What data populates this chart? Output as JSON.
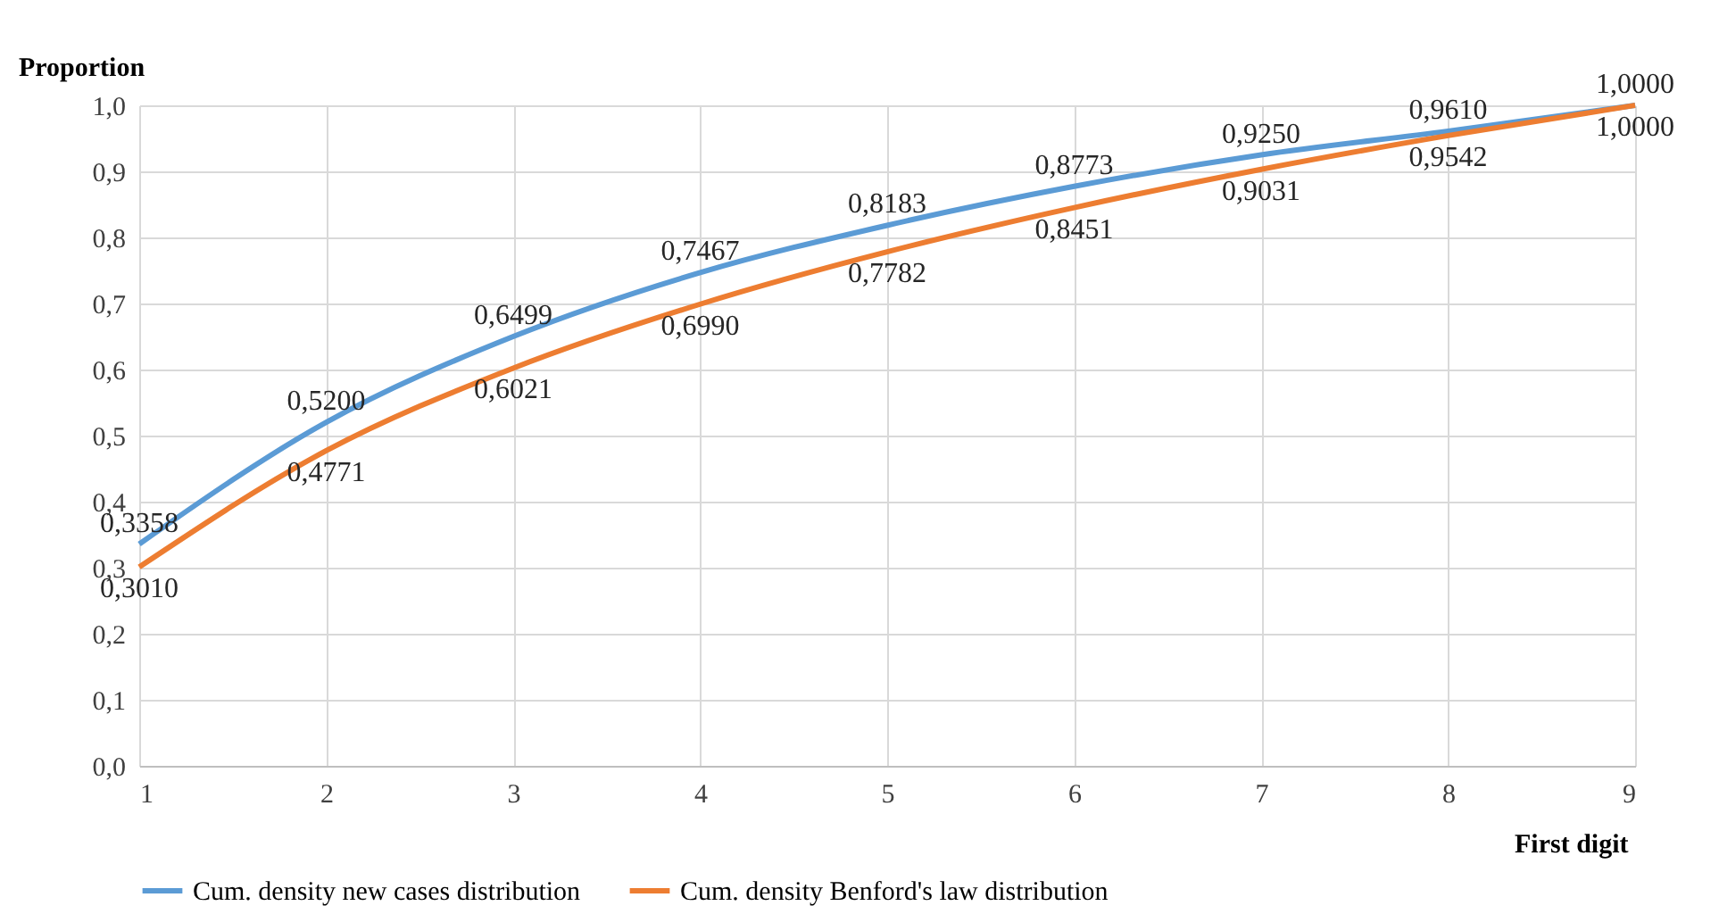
{
  "chart_data": {
    "type": "line",
    "xlabel": "First digit",
    "ylabel": "Proportion",
    "x": [
      1,
      2,
      3,
      4,
      5,
      6,
      7,
      8,
      9
    ],
    "xlim": [
      1,
      9
    ],
    "xticks": [
      1,
      2,
      3,
      4,
      5,
      6,
      7,
      8,
      9
    ],
    "ylim": [
      0,
      1
    ],
    "yticks": [
      {
        "value": 0,
        "label": "0,0"
      },
      {
        "value": 0.1,
        "label": "0,1"
      },
      {
        "value": 0.2,
        "label": "0,2"
      },
      {
        "value": 0.3,
        "label": "0,3"
      },
      {
        "value": 0.4,
        "label": "0,4"
      },
      {
        "value": 0.5,
        "label": "0,5"
      },
      {
        "value": 0.6,
        "label": "0,6"
      },
      {
        "value": 0.7,
        "label": "0,7"
      },
      {
        "value": 0.8,
        "label": "0,8"
      },
      {
        "value": 0.9,
        "label": "0,9"
      },
      {
        "value": 1,
        "label": "1,0"
      }
    ],
    "series": [
      {
        "name": "Cum. density new cases distribution",
        "color": "#5b9bd5",
        "values": [
          0.3358,
          0.52,
          0.6499,
          0.7467,
          0.8183,
          0.8773,
          0.925,
          0.961,
          1.0
        ],
        "value_labels": [
          "0,3358",
          "0,5200",
          "0,6499",
          "0,7467",
          "0,8183",
          "0,8773",
          "0,9250",
          "0,9610",
          "1,0000"
        ]
      },
      {
        "name": "Cum. density Benford's law distribution",
        "color": "#ed7d31",
        "values": [
          0.301,
          0.4771,
          0.6021,
          0.699,
          0.7782,
          0.8451,
          0.9031,
          0.9542,
          1.0
        ],
        "value_labels": [
          "0,3010",
          "0,4771",
          "0,6021",
          "0,6990",
          "0,7782",
          "0,8451",
          "0,9031",
          "0,9542",
          "1,0000"
        ]
      }
    ],
    "grid": true,
    "legend": "bottom",
    "marker": "none",
    "line_style": "solid"
  }
}
